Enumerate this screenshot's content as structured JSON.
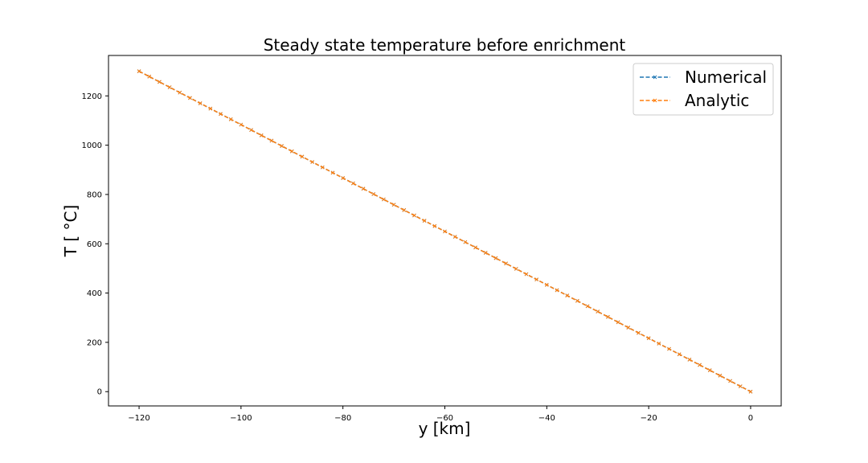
{
  "chart_data": {
    "type": "line",
    "title": "Steady state temperature before enrichment",
    "xlabel": "y [km]",
    "ylabel": "T [ °C]",
    "xlim": [
      -126,
      6
    ],
    "ylim": [
      -58,
      1364
    ],
    "xticks": [
      -120,
      -100,
      -80,
      -60,
      -40,
      -20,
      0
    ],
    "xtick_labels": [
      "−120",
      "−100",
      "−80",
      "−60",
      "−40",
      "−20",
      "0"
    ],
    "yticks": [
      0,
      200,
      400,
      600,
      800,
      1000,
      1200
    ],
    "ytick_labels": [
      "0",
      "200",
      "400",
      "600",
      "800",
      "1000",
      "1200"
    ],
    "grid": false,
    "legend_position": "upper right",
    "series": [
      {
        "name": "Numerical",
        "color": "#1f77b4",
        "style": "dashed-x",
        "x": [
          -120,
          -110,
          -100,
          -90,
          -80,
          -70,
          -60,
          -50,
          -40,
          -30,
          -20,
          -10,
          0
        ],
        "values": [
          1300,
          1191.7,
          1083.3,
          975,
          866.7,
          758.3,
          650,
          541.7,
          433.3,
          325,
          216.7,
          108.3,
          0
        ]
      },
      {
        "name": "Analytic",
        "color": "#ff7f0e",
        "style": "dashed-x",
        "x": [
          -120,
          -110,
          -100,
          -90,
          -80,
          -70,
          -60,
          -50,
          -40,
          -30,
          -20,
          -10,
          0
        ],
        "values": [
          1300,
          1191.7,
          1083.3,
          975,
          866.7,
          758.3,
          650,
          541.7,
          433.3,
          325,
          216.7,
          108.3,
          0
        ]
      }
    ]
  }
}
